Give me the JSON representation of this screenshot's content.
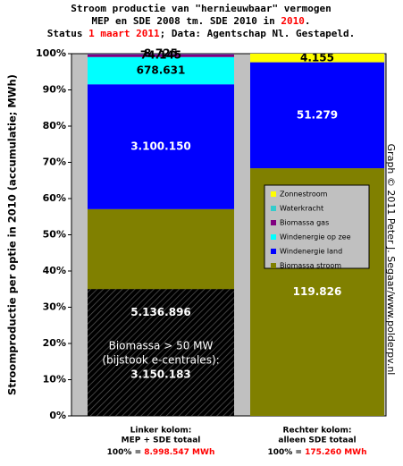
{
  "chart_data": {
    "type": "bar",
    "stacking": "percent",
    "title": [
      [
        {
          "text": "Stroom productie van \"hernieuwbaar\" vermogen"
        }
      ],
      [
        {
          "text": "MEP en SDE 2008 tm. SDE 2010 in "
        },
        {
          "text": "2010",
          "color": "#ff0000"
        },
        {
          "text": "."
        }
      ],
      [
        {
          "text": "Status "
        },
        {
          "text": "1 maart 2011",
          "color": "#ff0000"
        },
        {
          "text": "; Data: Agentschap Nl. Gestapeld."
        }
      ]
    ],
    "ylabel": "Stroomproductie per optie in 2010 (accumulatie; MWh)",
    "watermark": "Graph © 2011 Peter J. Segaar/www.polderpv.nl",
    "categories": [
      [
        "Linker kolom:",
        "MEP + SDE totaal"
      ],
      [
        "Rechter kolom:",
        "alleen SDE totaal"
      ]
    ],
    "totals": [
      {
        "prefix": "100% = ",
        "value": 8998547,
        "label": "8.998.547 MWh"
      },
      {
        "prefix": "100% = ",
        "value": 175260,
        "label": "175.260 MWh"
      }
    ],
    "series": [
      {
        "name": "Biomassa stroom",
        "color": "#808000",
        "label_color": "#ffffff",
        "values": [
          5136896,
          119826
        ],
        "value_labels": [
          "5.136.896",
          "119.826"
        ]
      },
      {
        "name": "Windenergie land",
        "color": "#0000ff",
        "label_color": "#ffffff",
        "values": [
          3100150,
          51279
        ],
        "value_labels": [
          "3.100.150",
          "51.279"
        ]
      },
      {
        "name": "Windenergie op zee",
        "color": "#00ffff",
        "label_color": "#000000",
        "values": [
          678631,
          null
        ],
        "value_labels": [
          "678.631",
          null
        ]
      },
      {
        "name": "Biomassa gas",
        "color": "#800080",
        "label_color": "#000000",
        "values": [
          74145,
          null
        ],
        "value_labels": [
          "74.145",
          null
        ]
      },
      {
        "name": "Waterkracht",
        "color": "#33cccc",
        "label_color": "#000000",
        "values": [
          8725,
          null
        ],
        "value_labels": [
          "8.725",
          null
        ]
      },
      {
        "name": "Zonnestroom",
        "color": "#ffff00",
        "label_color": "#000000",
        "values": [
          null,
          4155
        ],
        "value_labels": [
          null,
          "4.155"
        ]
      }
    ],
    "overlay": {
      "text": [
        "Biomassa > 50 MW",
        "(bijstook e-centrales):"
      ],
      "value": 3150183,
      "value_label": "3.150.183",
      "category": 0
    },
    "ylim": [
      0,
      100
    ],
    "yticks": [
      {
        "value": 0,
        "label": "0%"
      },
      {
        "value": 10,
        "label": "10%"
      },
      {
        "value": 20,
        "label": "20%"
      },
      {
        "value": 30,
        "label": "30%"
      },
      {
        "value": 40,
        "label": "40%"
      },
      {
        "value": 50,
        "label": "50%"
      },
      {
        "value": 60,
        "label": "60%"
      },
      {
        "value": 70,
        "label": "70%"
      },
      {
        "value": 80,
        "label": "80%"
      },
      {
        "value": 90,
        "label": "90%"
      },
      {
        "value": 100,
        "label": "100%"
      }
    ]
  }
}
